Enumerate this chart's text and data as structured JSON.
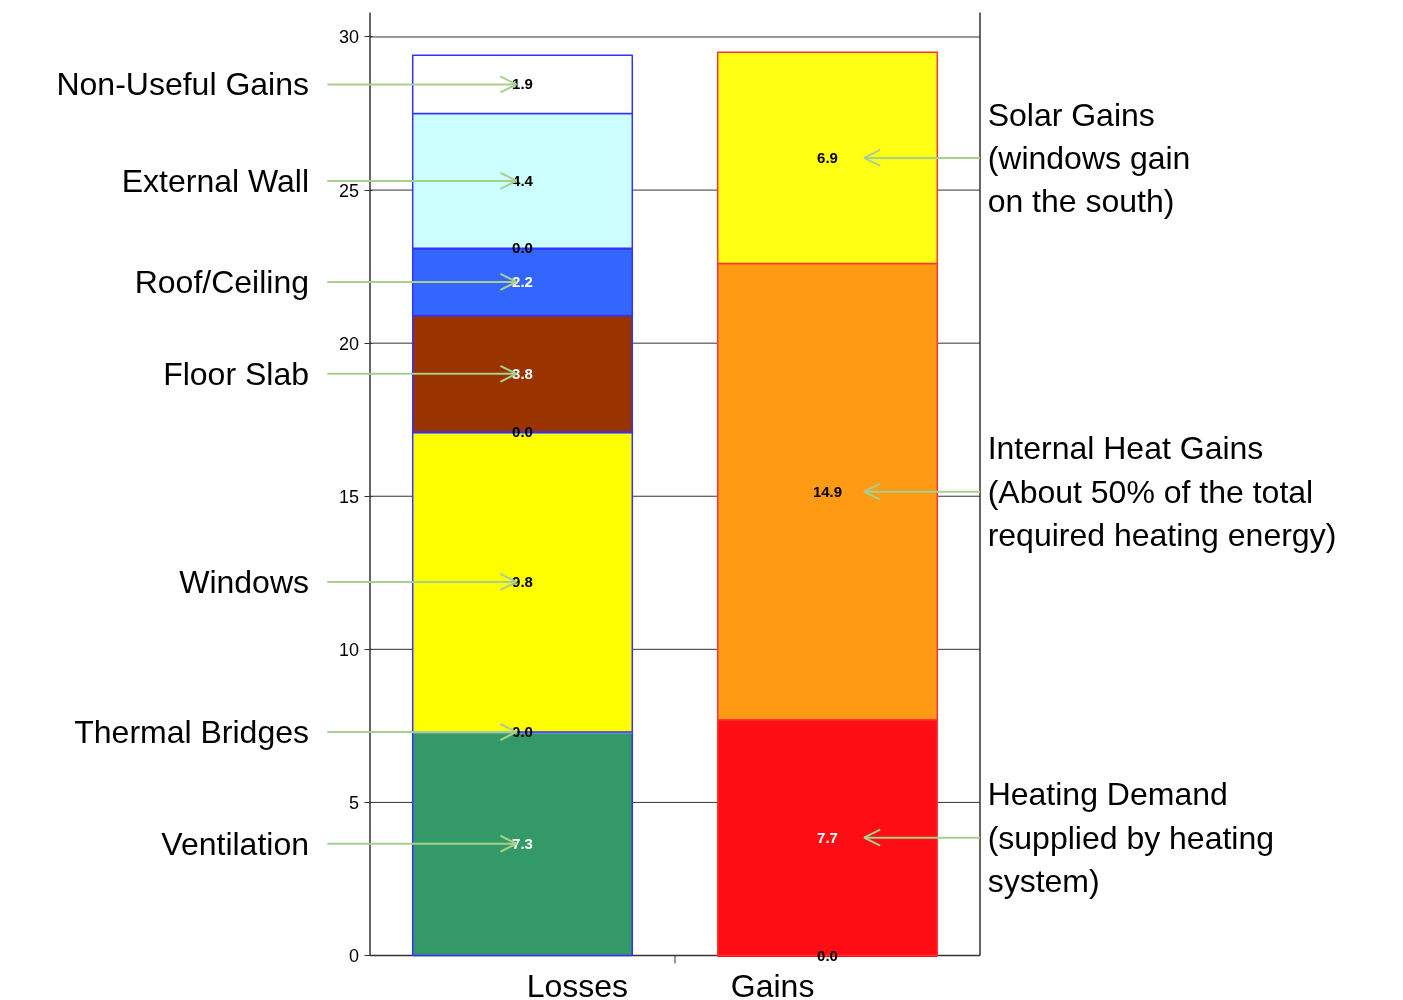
{
  "chart_data": {
    "type": "bar",
    "stacked": true,
    "categories": [
      "Losses",
      "Gains"
    ],
    "ylim": [
      0,
      30.8
    ],
    "yticks": [
      0,
      5,
      10,
      15,
      20,
      25,
      30
    ],
    "grid": "y",
    "legend": false,
    "series": [
      {
        "name": "Ventilation",
        "color": "#339966",
        "values": [
          7.3,
          null
        ],
        "value_labels": [
          "7.3",
          null
        ]
      },
      {
        "name": "Thermal Bridges",
        "color": "#9999ff",
        "values": [
          0.0,
          null
        ],
        "value_labels": [
          "0.0",
          null
        ]
      },
      {
        "name": "Windows",
        "color": "#ffff00",
        "values": [
          9.8,
          null
        ],
        "value_labels": [
          "9.8",
          null
        ]
      },
      {
        "color": "#3333ff",
        "values": [
          0.0,
          null
        ],
        "value_labels": [
          "0.0",
          null
        ]
      },
      {
        "name": "Floor Slab",
        "color": "#993300",
        "values": [
          3.8,
          null
        ],
        "value_labels": [
          "3.8",
          null
        ]
      },
      {
        "name": "Roof/Ceiling",
        "color": "#3366ff",
        "values": [
          2.2,
          null
        ],
        "value_labels": [
          "2.2",
          null
        ]
      },
      {
        "color": "#3333ff",
        "values": [
          0.0,
          null
        ],
        "value_labels": [
          "0.0",
          null
        ]
      },
      {
        "name": "External Wall",
        "color": "#ccffff",
        "values": [
          4.4,
          null
        ],
        "value_labels": [
          "4.4",
          null
        ]
      },
      {
        "name": "Non-Useful Gains",
        "color": "#ffffff",
        "values": [
          1.9,
          null
        ],
        "value_labels": [
          "1.9",
          null
        ]
      },
      {
        "color": "#ff0000",
        "values": [
          null,
          0.0
        ],
        "value_labels": [
          null,
          "0.0"
        ]
      },
      {
        "name": "Heating Demand\n(supplied by heating\nsystem)",
        "color": "#ff0d14",
        "values": [
          null,
          7.7
        ],
        "value_labels": [
          null,
          "7.7"
        ]
      },
      {
        "name": "Internal Heat Gains\n(About 50% of the total\nrequired heating energy)",
        "color": "#ff9a14",
        "values": [
          null,
          14.9
        ],
        "value_labels": [
          null,
          "14.9"
        ]
      },
      {
        "name": "Solar Gains\n(windows gain\non the south)",
        "color": "#ffff14",
        "values": [
          null,
          6.9
        ],
        "value_labels": [
          null,
          "6.9"
        ]
      }
    ]
  }
}
